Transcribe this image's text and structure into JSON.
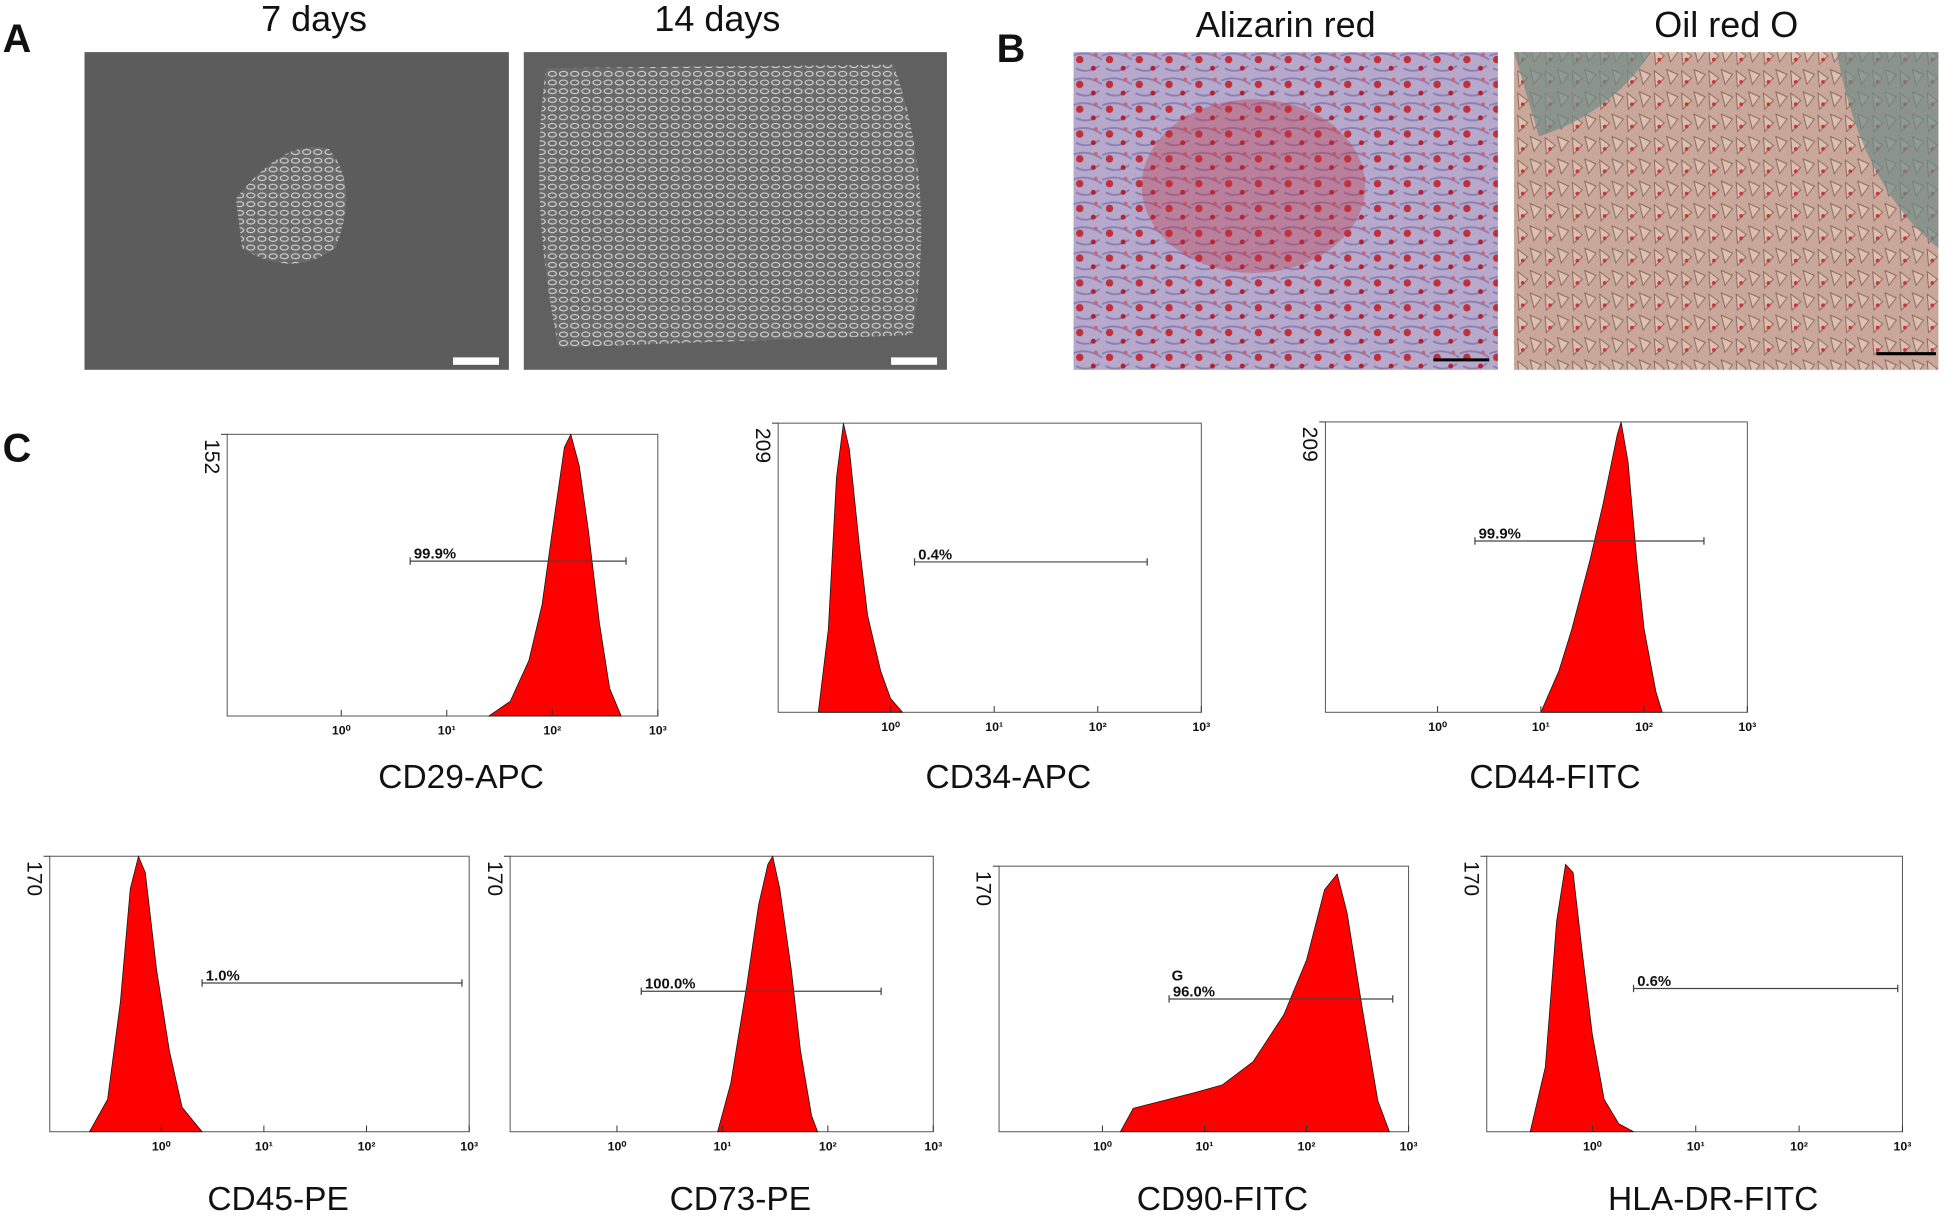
{
  "panels": [
    {
      "label": "A",
      "images": [
        {
          "caption": "7 days"
        },
        {
          "caption": "14 days"
        }
      ]
    },
    {
      "label": "B",
      "images": [
        {
          "caption": "Alizarin red"
        },
        {
          "caption": "Oil red O"
        }
      ]
    },
    {
      "label": "C"
    }
  ],
  "chart_data": [
    {
      "type": "area",
      "xlabel": "CD29-APC",
      "color": "#ff0000",
      "log_x": true,
      "xlim": [
        0.083,
        1000
      ],
      "xticks": [
        {
          "value": 1,
          "label": "10⁰"
        },
        {
          "value": 10,
          "label": "10¹"
        },
        {
          "value": 100,
          "label": "10²"
        },
        {
          "value": 1000,
          "label": "10³"
        }
      ],
      "ylim": [
        0,
        152
      ],
      "yticks": [
        152
      ],
      "x": [
        25,
        40,
        60,
        80,
        100,
        130,
        150,
        180,
        220,
        280,
        350,
        450
      ],
      "values": [
        0,
        8,
        30,
        60,
        100,
        145,
        152,
        135,
        100,
        50,
        15,
        0
      ],
      "gate": {
        "label": "99.9%",
        "x": [
          4.5,
          500
        ]
      }
    },
    {
      "type": "area",
      "xlabel": "CD34-APC",
      "color": "#ff0000",
      "log_x": true,
      "xlim": [
        0.082,
        1000
      ],
      "xticks": [
        {
          "value": 1,
          "label": "10⁰"
        },
        {
          "value": 10,
          "label": "10¹"
        },
        {
          "value": 100,
          "label": "10²"
        },
        {
          "value": 1000,
          "label": "10³"
        }
      ],
      "ylim": [
        0,
        209
      ],
      "yticks": [
        209
      ],
      "x": [
        0.2,
        0.25,
        0.3,
        0.35,
        0.4,
        0.5,
        0.6,
        0.8,
        1.0,
        1.3
      ],
      "values": [
        0,
        60,
        170,
        209,
        190,
        120,
        70,
        30,
        10,
        0
      ],
      "gate": {
        "label": "0.4%",
        "x": [
          1.7,
          300
        ]
      }
    },
    {
      "type": "area",
      "xlabel": "CD44-FITC",
      "color": "#ff0000",
      "log_x": true,
      "xlim": [
        0.082,
        1000
      ],
      "xticks": [
        {
          "value": 1,
          "label": "10⁰"
        },
        {
          "value": 10,
          "label": "10¹"
        },
        {
          "value": 100,
          "label": "10²"
        },
        {
          "value": 1000,
          "label": "10³"
        }
      ],
      "ylim": [
        0,
        209
      ],
      "yticks": [
        209
      ],
      "x": [
        10,
        15,
        20,
        30,
        40,
        55,
        60,
        70,
        85,
        100,
        130,
        150
      ],
      "values": [
        0,
        30,
        60,
        110,
        150,
        200,
        209,
        180,
        110,
        60,
        15,
        0
      ],
      "gate": {
        "label": "99.9%",
        "x": [
          2.3,
          380
        ]
      }
    },
    {
      "type": "area",
      "xlabel": "CD45-PE",
      "color": "#ff0000",
      "log_x": true,
      "xlim": [
        0.082,
        1000
      ],
      "xticks": [
        {
          "value": 1,
          "label": "10⁰"
        },
        {
          "value": 10,
          "label": "10¹"
        },
        {
          "value": 100,
          "label": "10²"
        },
        {
          "value": 1000,
          "label": "10³"
        }
      ],
      "ylim": [
        0,
        170
      ],
      "yticks": [
        170
      ],
      "x": [
        0.2,
        0.3,
        0.4,
        0.5,
        0.6,
        0.7,
        0.9,
        1.2,
        1.6,
        2.5
      ],
      "values": [
        0,
        20,
        80,
        150,
        170,
        160,
        100,
        50,
        15,
        0
      ],
      "gate": {
        "label": "1.0%",
        "x": [
          2.5,
          850
        ]
      }
    },
    {
      "type": "area",
      "xlabel": "CD73-PE",
      "color": "#ff0000",
      "log_x": true,
      "xlim": [
        0.097,
        1000
      ],
      "xticks": [
        {
          "value": 1,
          "label": "10⁰"
        },
        {
          "value": 10,
          "label": "10¹"
        },
        {
          "value": 100,
          "label": "10²"
        },
        {
          "value": 1000,
          "label": "10³"
        }
      ],
      "ylim": [
        0,
        170
      ],
      "yticks": [
        170
      ],
      "x": [
        9,
        12,
        17,
        22,
        27,
        30,
        35,
        45,
        55,
        70,
        80
      ],
      "values": [
        0,
        30,
        90,
        140,
        165,
        170,
        150,
        100,
        50,
        10,
        0
      ],
      "gate": {
        "label": "100.0%",
        "x": [
          1.7,
          320
        ]
      }
    },
    {
      "type": "area",
      "xlabel": "CD90-FITC",
      "color": "#ff0000",
      "log_x": true,
      "xlim": [
        0.097,
        1000
      ],
      "xticks": [
        {
          "value": 1,
          "label": "10⁰"
        },
        {
          "value": 10,
          "label": "10¹"
        },
        {
          "value": 100,
          "label": "10²"
        },
        {
          "value": 1000,
          "label": "10³"
        }
      ],
      "ylim": [
        0,
        170
      ],
      "yticks": [
        170
      ],
      "x": [
        1.5,
        2,
        4,
        8,
        15,
        30,
        60,
        100,
        150,
        200,
        250,
        350,
        500,
        650
      ],
      "values": [
        0,
        15,
        20,
        25,
        30,
        45,
        75,
        110,
        155,
        165,
        140,
        80,
        20,
        0
      ],
      "gate": {
        "name": "G",
        "label": "96.0%",
        "x": [
          4.5,
          700
        ]
      }
    },
    {
      "type": "area",
      "xlabel": "HLA-DR-FITC",
      "color": "#ff0000",
      "log_x": true,
      "xlim": [
        0.095,
        1000
      ],
      "xticks": [
        {
          "value": 1,
          "label": "10⁰"
        },
        {
          "value": 10,
          "label": "10¹"
        },
        {
          "value": 100,
          "label": "10²"
        },
        {
          "value": 1000,
          "label": "10³"
        }
      ],
      "ylim": [
        0,
        170
      ],
      "yticks": [
        170
      ],
      "x": [
        0.25,
        0.35,
        0.45,
        0.55,
        0.65,
        0.8,
        1.0,
        1.3,
        1.8,
        2.5
      ],
      "values": [
        0,
        40,
        130,
        165,
        160,
        110,
        60,
        20,
        5,
        0
      ],
      "gate": {
        "label": "0.6%",
        "x": [
          2.5,
          900
        ]
      }
    }
  ]
}
